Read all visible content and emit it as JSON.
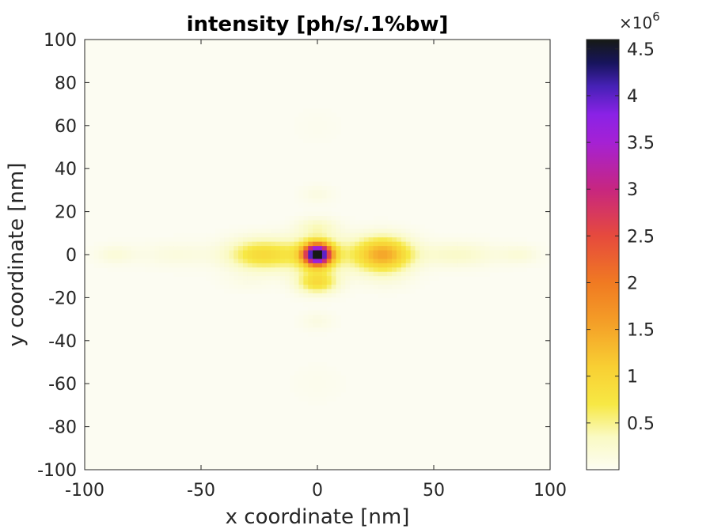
{
  "chart_data": {
    "type": "heatmap",
    "title": "intensity [ph/s/.1%bw]",
    "xlabel": "x coordinate [nm]",
    "ylabel": "y coordinate [nm]",
    "xlim": [
      -100,
      100
    ],
    "ylim": [
      -100,
      100
    ],
    "x_ticks": [
      {
        "value": -100,
        "label": "-100"
      },
      {
        "value": -50,
        "label": "-50"
      },
      {
        "value": 0,
        "label": "0"
      },
      {
        "value": 50,
        "label": "50"
      },
      {
        "value": 100,
        "label": "100"
      }
    ],
    "y_ticks": [
      {
        "value": -100,
        "label": "-100"
      },
      {
        "value": -80,
        "label": "-80"
      },
      {
        "value": -60,
        "label": "-60"
      },
      {
        "value": -40,
        "label": "-40"
      },
      {
        "value": -20,
        "label": "-20"
      },
      {
        "value": 0,
        "label": "0"
      },
      {
        "value": 20,
        "label": "20"
      },
      {
        "value": 40,
        "label": "40"
      },
      {
        "value": 60,
        "label": "60"
      },
      {
        "value": 80,
        "label": "80"
      },
      {
        "value": 100,
        "label": "100"
      }
    ],
    "colorbar": {
      "multiplier": "×10",
      "exponent": "6",
      "range": [
        0.0,
        4.6
      ],
      "ticks": [
        {
          "value": 0.5,
          "label": "0.5"
        },
        {
          "value": 1.0,
          "label": "1"
        },
        {
          "value": 1.5,
          "label": "1.5"
        },
        {
          "value": 2.0,
          "label": "2"
        },
        {
          "value": 2.5,
          "label": "2.5"
        },
        {
          "value": 3.0,
          "label": "3"
        },
        {
          "value": 3.5,
          "label": "3.5"
        },
        {
          "value": 4.0,
          "label": "4"
        },
        {
          "value": 4.5,
          "label": "4.5"
        }
      ],
      "colormap": [
        {
          "v": 0.0,
          "color": "#fcfcf2"
        },
        {
          "v": 0.35,
          "color": "#fafac3"
        },
        {
          "v": 0.7,
          "color": "#f7e844"
        },
        {
          "v": 1.1,
          "color": "#f8cf33"
        },
        {
          "v": 1.6,
          "color": "#f49c27"
        },
        {
          "v": 2.0,
          "color": "#f07a22"
        },
        {
          "v": 2.5,
          "color": "#e64a3d"
        },
        {
          "v": 3.0,
          "color": "#c72680"
        },
        {
          "v": 3.5,
          "color": "#a521d4"
        },
        {
          "v": 3.8,
          "color": "#8a22e6"
        },
        {
          "v": 4.1,
          "color": "#4621b6"
        },
        {
          "v": 4.35,
          "color": "#17145c"
        },
        {
          "v": 4.6,
          "color": "#161a14"
        }
      ]
    },
    "intensity_peaks": [
      {
        "x": 0,
        "y": 0,
        "sx": 3.8,
        "sy": 3.2,
        "value": 4.6
      },
      {
        "x": 0,
        "y": 0,
        "sx": 9.0,
        "sy": 6.0,
        "value": 0.8
      },
      {
        "x": 28,
        "y": 0,
        "sx": 8.5,
        "sy": 5.5,
        "value": 1.5
      },
      {
        "x": -24,
        "y": 0,
        "sx": 10.0,
        "sy": 5.0,
        "value": 0.9
      },
      {
        "x": 0,
        "y": -13,
        "sx": 6.0,
        "sy": 3.5,
        "value": 0.85
      },
      {
        "x": 0,
        "y": 13,
        "sx": 6.0,
        "sy": 3.0,
        "value": 0.3
      },
      {
        "x": 60,
        "y": 0,
        "sx": 12.0,
        "sy": 4.0,
        "value": 0.3
      },
      {
        "x": -60,
        "y": 0,
        "sx": 12.0,
        "sy": 4.0,
        "value": 0.15
      },
      {
        "x": 87,
        "y": 0,
        "sx": 6.0,
        "sy": 3.0,
        "value": 0.18
      },
      {
        "x": -87,
        "y": 0,
        "sx": 6.0,
        "sy": 3.0,
        "value": 0.18
      },
      {
        "x": 0,
        "y": 28,
        "sx": 5.0,
        "sy": 3.0,
        "value": 0.12
      },
      {
        "x": 0,
        "y": -31,
        "sx": 5.0,
        "sy": 3.0,
        "value": 0.12
      },
      {
        "x": 30,
        "y": -13,
        "sx": 8.0,
        "sy": 3.0,
        "value": 0.07
      },
      {
        "x": -30,
        "y": -13,
        "sx": 8.0,
        "sy": 3.0,
        "value": 0.07
      },
      {
        "x": 0,
        "y": -60,
        "sx": 8.0,
        "sy": 6.0,
        "value": 0.04
      },
      {
        "x": 0,
        "y": 60,
        "sx": 8.0,
        "sy": 6.0,
        "value": 0.03
      }
    ]
  }
}
